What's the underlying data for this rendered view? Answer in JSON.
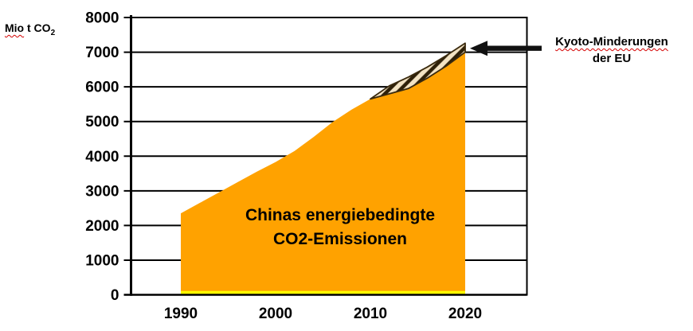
{
  "unit_label": {
    "word": "Mio",
    "rest": " t CO",
    "subscript": "2",
    "full_text": "Mio t CO2"
  },
  "area_label": {
    "line1": "Chinas energiebedingte",
    "line2": "CO2-Emissionen"
  },
  "kyoto_label": {
    "line1": "Kyoto-Minderungen",
    "line2": "der EU"
  },
  "colors": {
    "area_orange": "#FFA200",
    "baseline_strip_yellow": "#FFFF00",
    "hatch_background": "#F3E3C3",
    "hatch_stripe": "#2E2008",
    "hatch_outline": "#3A2A0E",
    "axis_and_grid": "#000000",
    "arrow_black": "#111111",
    "spellcheck_red": "#D40000"
  },
  "chart_data": {
    "type": "area",
    "title": "",
    "xlabel": "",
    "ylabel": "Mio t CO2",
    "xlim": [
      1990,
      2020
    ],
    "ylim": [
      0,
      8000
    ],
    "x_ticks": [
      1990,
      2000,
      2010,
      2020
    ],
    "y_ticks": [
      0,
      1000,
      2000,
      3000,
      4000,
      5000,
      6000,
      7000,
      8000
    ],
    "grid": "horizontal",
    "legend": "none",
    "series": [
      {
        "name": "Chinas energiebedingte CO2-Emissionen",
        "type": "area",
        "color": "#FFA200",
        "points": [
          [
            1990,
            2350
          ],
          [
            1992,
            2650
          ],
          [
            1994,
            2950
          ],
          [
            1996,
            3250
          ],
          [
            1998,
            3550
          ],
          [
            2000,
            3830
          ],
          [
            2002,
            4150
          ],
          [
            2004,
            4550
          ],
          [
            2006,
            4980
          ],
          [
            2008,
            5340
          ],
          [
            2010,
            5650
          ],
          [
            2012,
            5800
          ],
          [
            2014,
            5950
          ],
          [
            2016,
            6250
          ],
          [
            2018,
            6600
          ],
          [
            2020,
            7000
          ]
        ]
      },
      {
        "name": "Kyoto-Minderungen der EU",
        "type": "hatched-wedge",
        "base_series": "Chinas energiebedingte CO2-Emissionen",
        "points_top": [
          [
            2010,
            5650
          ],
          [
            2012,
            6030
          ],
          [
            2014,
            6280
          ],
          [
            2016,
            6570
          ],
          [
            2018,
            6900
          ],
          [
            2020,
            7260
          ]
        ]
      },
      {
        "name": "baseline-strip",
        "type": "band",
        "color": "#FFFF00",
        "x_range": [
          1990,
          2020
        ],
        "y_range": [
          0,
          110
        ]
      }
    ],
    "annotation": {
      "text": "Kyoto-Minderungen der EU",
      "arrow_points_to": [
        2020,
        7260
      ]
    }
  }
}
